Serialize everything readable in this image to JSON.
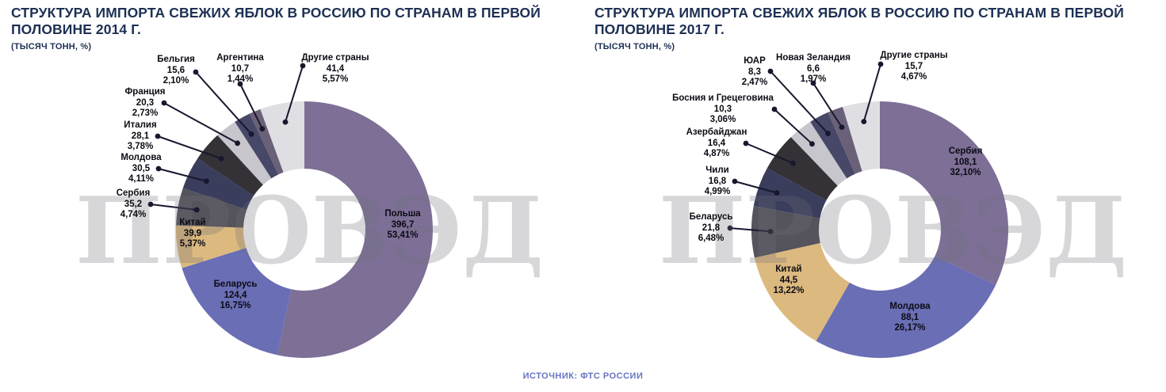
{
  "watermark": {
    "text": "ПРОВЭД"
  },
  "source": {
    "label": "ИСТОЧНИК: ФТС РОССИИ"
  },
  "chart_data": [
    {
      "type": "pie",
      "subtype": "donut",
      "title": "СТРУКТУРА ИМПОРТА СВЕЖИХ ЯБЛОК В РОССИЮ ПО СТРАНАМ В ПЕРВОЙ ПОЛОВИНЕ 2014 Г.",
      "subtitle": "(ТЫСЯЧ ТОНН, %)",
      "legend_position": "none",
      "slices": [
        {
          "label": "Польша",
          "value": "396,7",
          "pct": 53.41,
          "pct_label": "53,41%",
          "color": "#7d6f96"
        },
        {
          "label": "Беларусь",
          "value": "124,4",
          "pct": 16.75,
          "pct_label": "16,75%",
          "color": "#6a6eb5"
        },
        {
          "label": "Китай",
          "value": "39,9",
          "pct": 5.37,
          "pct_label": "5,37%",
          "color": "#dcb97e"
        },
        {
          "label": "Сербия",
          "value": "35,2",
          "pct": 4.74,
          "pct_label": "4,74%",
          "color": "#55535b"
        },
        {
          "label": "Молдова",
          "value": "30,5",
          "pct": 4.11,
          "pct_label": "4,11%",
          "color": "#3a3d5c"
        },
        {
          "label": "Италия",
          "value": "28,1",
          "pct": 3.78,
          "pct_label": "3,78%",
          "color": "#343137"
        },
        {
          "label": "Франция",
          "value": "20,3",
          "pct": 2.73,
          "pct_label": "2,73%",
          "color": "#c7c6cc"
        },
        {
          "label": "Бельгия",
          "value": "15,6",
          "pct": 2.1,
          "pct_label": "2,10%",
          "color": "#474768"
        },
        {
          "label": "Аргентина",
          "value": "10,7",
          "pct": 1.44,
          "pct_label": "1,44%",
          "color": "#6a6178"
        },
        {
          "label": "Другие страны",
          "value": "41,4",
          "pct": 5.57,
          "pct_label": "5,57%",
          "color": "#dfdee2"
        }
      ]
    },
    {
      "type": "pie",
      "subtype": "donut",
      "title": "СТРУКТУРА ИМПОРТА СВЕЖИХ ЯБЛОК В РОССИЮ ПО СТРАНАМ В ПЕРВОЙ ПОЛОВИНЕ 2017 Г.",
      "subtitle": "(ТЫСЯЧ ТОНН, %)",
      "legend_position": "none",
      "slices": [
        {
          "label": "Сербия",
          "value": "108,1",
          "pct": 32.1,
          "pct_label": "32,10%",
          "color": "#7d6f96"
        },
        {
          "label": "Молдова",
          "value": "88,1",
          "pct": 26.17,
          "pct_label": "26,17%",
          "color": "#6a6eb5"
        },
        {
          "label": "Китай",
          "value": "44,5",
          "pct": 13.22,
          "pct_label": "13,22%",
          "color": "#dcb97e"
        },
        {
          "label": "Беларусь",
          "value": "21,8",
          "pct": 6.48,
          "pct_label": "6,48%",
          "color": "#55535b"
        },
        {
          "label": "Чили",
          "value": "16,8",
          "pct": 4.99,
          "pct_label": "4,99%",
          "color": "#3a3d5c"
        },
        {
          "label": "Азербайджан",
          "value": "16,4",
          "pct": 4.87,
          "pct_label": "4,87%",
          "color": "#343137"
        },
        {
          "label": "Босния и Грецеговина",
          "value": "10,3",
          "pct": 3.06,
          "pct_label": "3,06%",
          "color": "#c7c6cc"
        },
        {
          "label": "ЮАР",
          "value": "8,3",
          "pct": 2.47,
          "pct_label": "2,47%",
          "color": "#474768"
        },
        {
          "label": "Новая Зеландия",
          "value": "6,6",
          "pct": 1.97,
          "pct_label": "1,97%",
          "color": "#6a6178"
        },
        {
          "label": "Другие страны",
          "value": "15,7",
          "pct": 4.67,
          "pct_label": "4,67%",
          "color": "#dfdee2"
        }
      ]
    }
  ]
}
